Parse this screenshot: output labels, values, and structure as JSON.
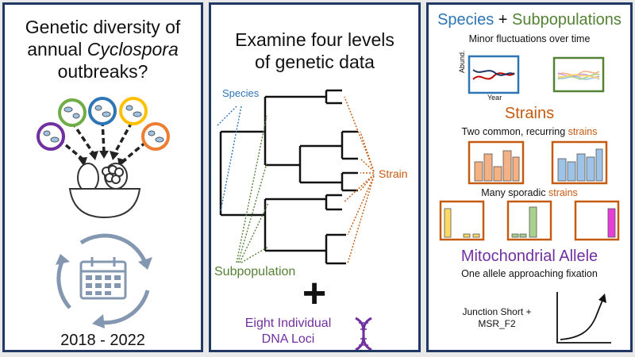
{
  "panel1": {
    "title_line1": "Genetic diversity of",
    "title_line2_pre": "annual ",
    "title_line2_italic": "Cyclospora",
    "title_line3": "outbreaks?",
    "years": "2018 - 2022"
  },
  "panel2": {
    "title_line1": "Examine four levels",
    "title_line2": "of genetic data",
    "label_species": "Species",
    "label_strain": "Strain",
    "label_subpopulation": "Subpopulation",
    "plus": "+",
    "loci_line1": "Eight Individual",
    "loci_line2": "DNA Loci"
  },
  "panel3": {
    "heading_species": "Species",
    "heading_plus": " + ",
    "heading_subpopulations": "Subpopulations",
    "subtitle_minor": "Minor fluctuations over time",
    "axis_abund": "Abund.",
    "axis_year": "Year",
    "heading_strains": "Strains",
    "common_pre": "Two common, recurring ",
    "common_word": "strains",
    "sporadic_pre": "Many sporadic ",
    "sporadic_word": "strains",
    "heading_mito": "Mitochondrial Allele",
    "mito_subtitle": "One allele approaching fixation",
    "loci_line1": "Junction Short +",
    "loci_line2": "MSR_F2"
  },
  "colors": {
    "border": "#1f3864",
    "species": "#2e75b6",
    "subpopulation": "#548235",
    "strain": "#c55a11",
    "mito": "#7030a0",
    "icon_gray": "#8497b0"
  },
  "icons": [
    "microbe-circle-icon",
    "fruit-bowl-icon",
    "cycle-arrows-icon",
    "calendar-icon",
    "dna-helix-icon",
    "phylogenetic-tree-icon"
  ]
}
